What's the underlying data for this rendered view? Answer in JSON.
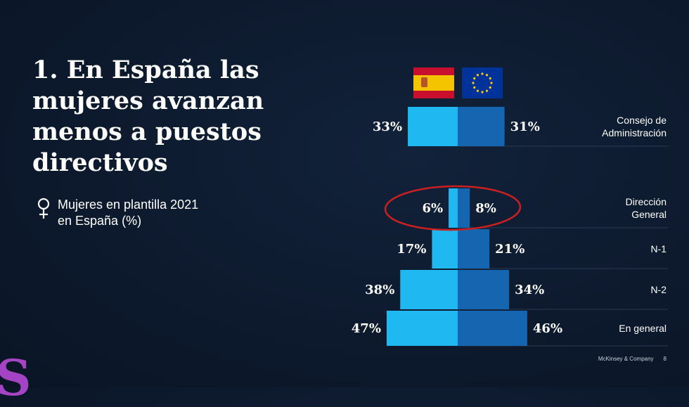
{
  "slide": {
    "title": "1. En España las mujeres avanzan menos a puestos directivos",
    "subtitle": "Mujeres en plantilla 2021 en España (%)",
    "footer_brand": "McKinsey & Company",
    "page_number": "8",
    "watermark": "S"
  },
  "colors": {
    "spain_bar": "#1fb8f0",
    "eu_bar": "#1565b0",
    "highlight": "#cc2020",
    "background": "#0d1a2e"
  },
  "chart_data": {
    "type": "bar",
    "orientation": "horizontal-butterfly",
    "categories": [
      "Consejo de Administración",
      "Dirección General",
      "N-1",
      "N-2",
      "En general"
    ],
    "series": [
      {
        "flag": "spain-flag-icon",
        "values": [
          33,
          6,
          17,
          38,
          47
        ]
      },
      {
        "flag": "eu-flag-icon",
        "values": [
          31,
          8,
          21,
          34,
          46
        ]
      }
    ],
    "value_labels": {
      "left": [
        "33%",
        "6%",
        "17%",
        "38%",
        "47%"
      ],
      "right": [
        "31%",
        "8%",
        "21%",
        "34%",
        "46%"
      ]
    },
    "category_lines": [
      [
        "Consejo de",
        "Administración"
      ],
      [
        "Dirección",
        "General"
      ],
      [
        "N-1"
      ],
      [
        "N-2"
      ],
      [
        "En general"
      ]
    ],
    "highlighted_category": "Dirección General",
    "unit": "%"
  }
}
